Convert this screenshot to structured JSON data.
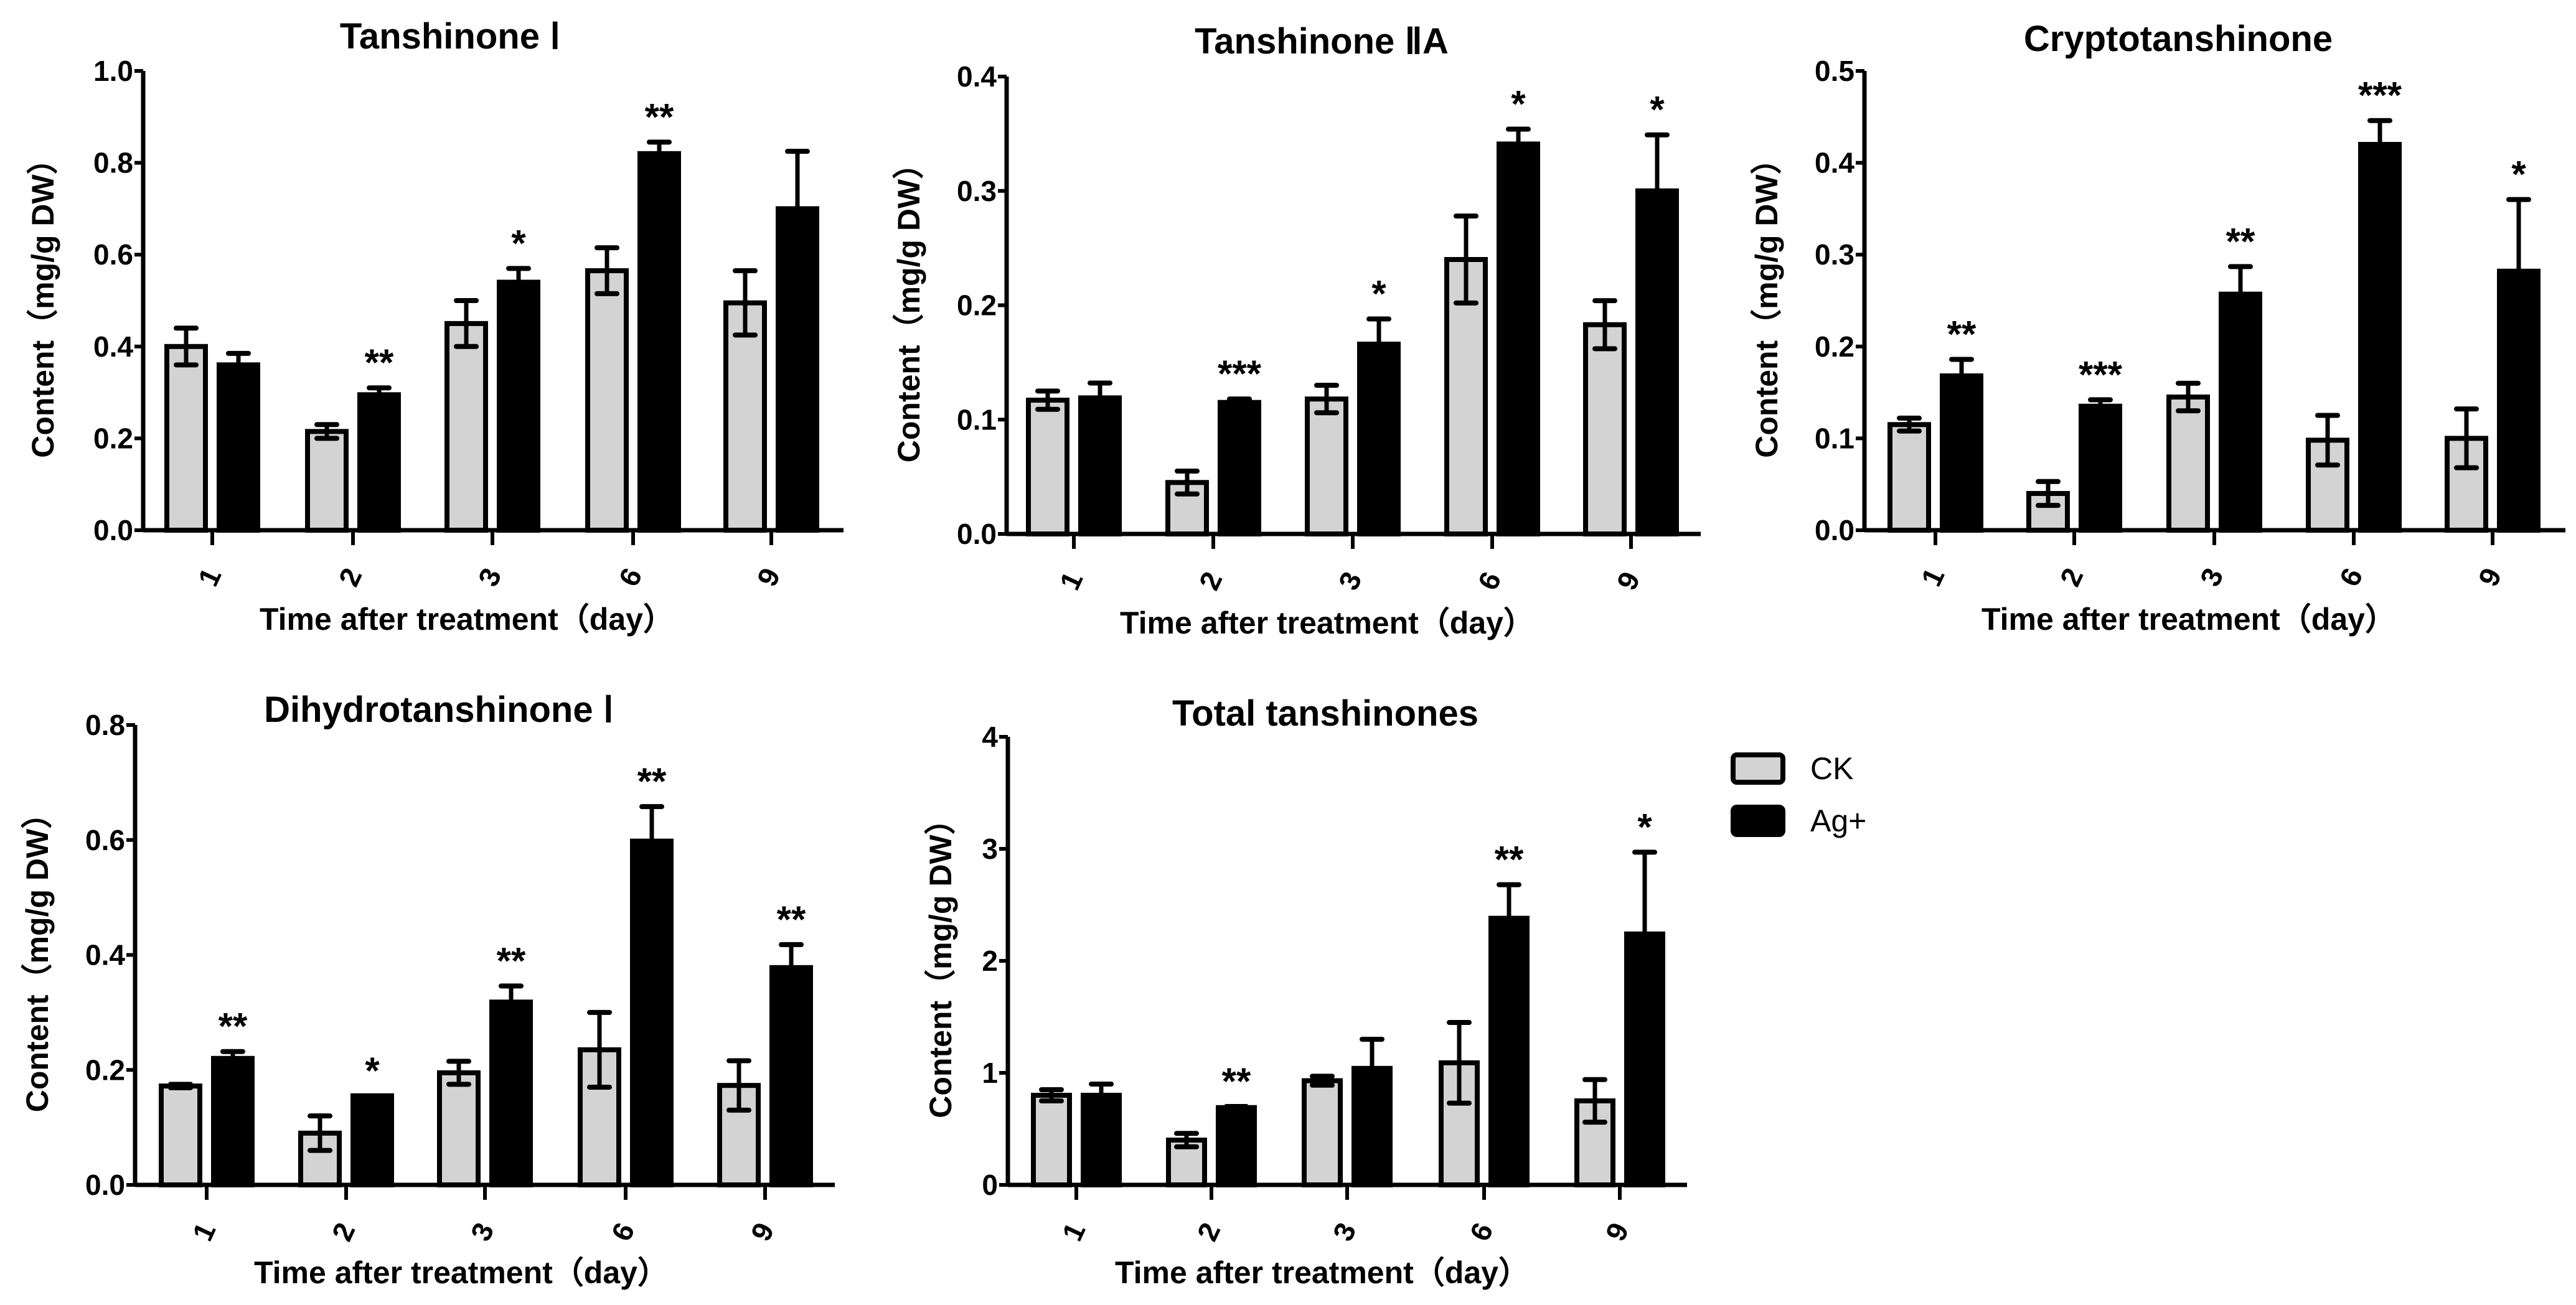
{
  "legend": {
    "ck": "CK",
    "ag": "Ag+"
  },
  "colors": {
    "ck": "#d3d3d3",
    "ag": "#000000",
    "stroke": "#000000"
  },
  "chart_data": [
    {
      "type": "bar",
      "title": "Tanshinone Ⅰ",
      "xlabel": "Time after treatment（day）",
      "ylabel": "Content（mg/g DW）",
      "categories": [
        "1",
        "2",
        "3",
        "6",
        "9"
      ],
      "ylim": [
        0,
        1.0
      ],
      "yticks": [
        "0.0",
        "0.2",
        "0.4",
        "0.6",
        "0.8",
        "1.0"
      ],
      "series": [
        {
          "name": "CK",
          "values": [
            0.4,
            0.215,
            0.45,
            0.565,
            0.495
          ],
          "errors": [
            0.04,
            0.015,
            0.05,
            0.05,
            0.07
          ]
        },
        {
          "name": "Ag+",
          "values": [
            0.36,
            0.295,
            0.54,
            0.82,
            0.7
          ],
          "errors": [
            0.025,
            0.015,
            0.03,
            0.025,
            0.125
          ]
        }
      ],
      "significance": [
        "",
        "**",
        "*",
        "**",
        ""
      ]
    },
    {
      "type": "bar",
      "title": "Tanshinone ⅡA",
      "xlabel": "Time after treatment（day）",
      "ylabel": "Content（mg/g DW）",
      "categories": [
        "1",
        "2",
        "3",
        "6",
        "9"
      ],
      "ylim": [
        0,
        0.4
      ],
      "yticks": [
        "0.0",
        "0.1",
        "0.2",
        "0.3",
        "0.4"
      ],
      "series": [
        {
          "name": "CK",
          "values": [
            0.117,
            0.045,
            0.118,
            0.24,
            0.183
          ],
          "errors": [
            0.008,
            0.01,
            0.012,
            0.038,
            0.021
          ]
        },
        {
          "name": "Ag+",
          "values": [
            0.119,
            0.115,
            0.166,
            0.341,
            0.3
          ],
          "errors": [
            0.013,
            0.003,
            0.022,
            0.013,
            0.049
          ]
        }
      ],
      "significance": [
        "",
        "***",
        "*",
        "*",
        "*"
      ]
    },
    {
      "type": "bar",
      "title": "Cryptotanshinone",
      "xlabel": "Time after treatment（day）",
      "ylabel": "Content（mg/g DW）",
      "categories": [
        "1",
        "2",
        "3",
        "6",
        "9"
      ],
      "ylim": [
        0,
        0.5
      ],
      "yticks": [
        "0.0",
        "0.1",
        "0.2",
        "0.3",
        "0.4",
        "0.5"
      ],
      "series": [
        {
          "name": "CK",
          "values": [
            0.115,
            0.04,
            0.145,
            0.098,
            0.1
          ],
          "errors": [
            0.007,
            0.013,
            0.015,
            0.027,
            0.032
          ]
        },
        {
          "name": "Ag+",
          "values": [
            0.168,
            0.135,
            0.257,
            0.42,
            0.282
          ],
          "errors": [
            0.018,
            0.007,
            0.03,
            0.026,
            0.078
          ]
        }
      ],
      "significance": [
        "**",
        "***",
        "**",
        "***",
        "*"
      ]
    },
    {
      "type": "bar",
      "title": "Dihydrotanshinone Ⅰ",
      "xlabel": "Time after treatment（day）",
      "ylabel": "Content（mg/g DW）",
      "categories": [
        "1",
        "2",
        "3",
        "6",
        "9"
      ],
      "ylim": [
        0,
        0.8
      ],
      "yticks": [
        "0.0",
        "0.2",
        "0.4",
        "0.6",
        "0.8"
      ],
      "series": [
        {
          "name": "CK",
          "values": [
            0.172,
            0.09,
            0.195,
            0.235,
            0.173
          ],
          "errors": [
            0.003,
            0.03,
            0.02,
            0.065,
            0.043
          ]
        },
        {
          "name": "Ag+",
          "values": [
            0.22,
            0.155,
            0.318,
            0.598,
            0.378
          ],
          "errors": [
            0.012,
            0.0,
            0.028,
            0.06,
            0.04
          ]
        }
      ],
      "significance": [
        "**",
        "*",
        "**",
        "**",
        "**"
      ]
    },
    {
      "type": "bar",
      "title": "Total tanshinones",
      "xlabel": "Time after treatment（day）",
      "ylabel": "Content（mg/g DW）",
      "categories": [
        "1",
        "2",
        "3",
        "6",
        "9"
      ],
      "ylim": [
        0,
        4
      ],
      "yticks": [
        "0",
        "1",
        "2",
        "3",
        "4"
      ],
      "series": [
        {
          "name": "CK",
          "values": [
            0.8,
            0.4,
            0.93,
            1.09,
            0.75
          ],
          "errors": [
            0.05,
            0.06,
            0.04,
            0.36,
            0.19
          ]
        },
        {
          "name": "Ag+",
          "values": [
            0.8,
            0.69,
            1.04,
            2.38,
            2.24
          ],
          "errors": [
            0.1,
            0.01,
            0.26,
            0.3,
            0.73
          ]
        }
      ],
      "significance": [
        "",
        "**",
        "",
        "**",
        "*"
      ]
    }
  ]
}
